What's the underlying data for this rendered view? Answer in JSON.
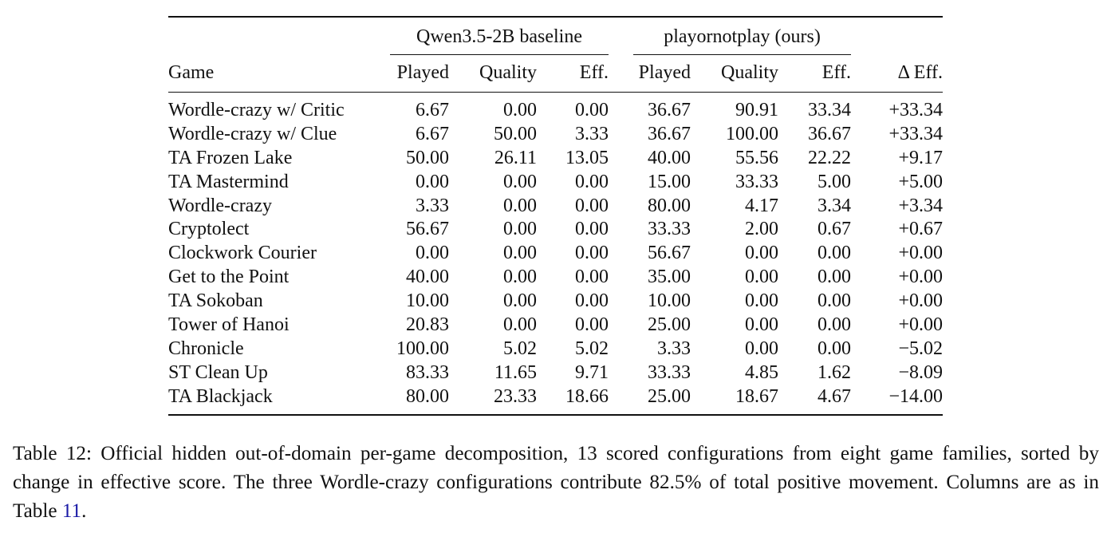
{
  "table": {
    "group_headers": {
      "baseline": "Qwen3.5-2B baseline",
      "ours": "playornotplay (ours)"
    },
    "columns": [
      "Game",
      "Played",
      "Quality",
      "Eff.",
      "Played",
      "Quality",
      "Eff.",
      "Δ Eff."
    ],
    "rows": [
      {
        "game": "Wordle-crazy w/ Critic",
        "b_played": "6.67",
        "b_quality": "0.00",
        "b_eff": "0.00",
        "o_played": "36.67",
        "o_quality": "90.91",
        "o_eff": "33.34",
        "delta": "+33.34"
      },
      {
        "game": "Wordle-crazy w/ Clue",
        "b_played": "6.67",
        "b_quality": "50.00",
        "b_eff": "3.33",
        "o_played": "36.67",
        "o_quality": "100.00",
        "o_eff": "36.67",
        "delta": "+33.34"
      },
      {
        "game": "TA Frozen Lake",
        "b_played": "50.00",
        "b_quality": "26.11",
        "b_eff": "13.05",
        "o_played": "40.00",
        "o_quality": "55.56",
        "o_eff": "22.22",
        "delta": "+9.17"
      },
      {
        "game": "TA Mastermind",
        "b_played": "0.00",
        "b_quality": "0.00",
        "b_eff": "0.00",
        "o_played": "15.00",
        "o_quality": "33.33",
        "o_eff": "5.00",
        "delta": "+5.00"
      },
      {
        "game": "Wordle-crazy",
        "b_played": "3.33",
        "b_quality": "0.00",
        "b_eff": "0.00",
        "o_played": "80.00",
        "o_quality": "4.17",
        "o_eff": "3.34",
        "delta": "+3.34"
      },
      {
        "game": "Cryptolect",
        "b_played": "56.67",
        "b_quality": "0.00",
        "b_eff": "0.00",
        "o_played": "33.33",
        "o_quality": "2.00",
        "o_eff": "0.67",
        "delta": "+0.67"
      },
      {
        "game": "Clockwork Courier",
        "b_played": "0.00",
        "b_quality": "0.00",
        "b_eff": "0.00",
        "o_played": "56.67",
        "o_quality": "0.00",
        "o_eff": "0.00",
        "delta": "+0.00"
      },
      {
        "game": "Get to the Point",
        "b_played": "40.00",
        "b_quality": "0.00",
        "b_eff": "0.00",
        "o_played": "35.00",
        "o_quality": "0.00",
        "o_eff": "0.00",
        "delta": "+0.00"
      },
      {
        "game": "TA Sokoban",
        "b_played": "10.00",
        "b_quality": "0.00",
        "b_eff": "0.00",
        "o_played": "10.00",
        "o_quality": "0.00",
        "o_eff": "0.00",
        "delta": "+0.00"
      },
      {
        "game": "Tower of Hanoi",
        "b_played": "20.83",
        "b_quality": "0.00",
        "b_eff": "0.00",
        "o_played": "25.00",
        "o_quality": "0.00",
        "o_eff": "0.00",
        "delta": "+0.00"
      },
      {
        "game": "Chronicle",
        "b_played": "100.00",
        "b_quality": "5.02",
        "b_eff": "5.02",
        "o_played": "3.33",
        "o_quality": "0.00",
        "o_eff": "0.00",
        "delta": "−5.02"
      },
      {
        "game": "ST Clean Up",
        "b_played": "83.33",
        "b_quality": "11.65",
        "b_eff": "9.71",
        "o_played": "33.33",
        "o_quality": "4.85",
        "o_eff": "1.62",
        "delta": "−8.09"
      },
      {
        "game": "TA Blackjack",
        "b_played": "80.00",
        "b_quality": "23.33",
        "b_eff": "18.66",
        "o_played": "25.00",
        "o_quality": "18.67",
        "o_eff": "4.67",
        "delta": "−14.00"
      }
    ]
  },
  "caption": {
    "main": "Table 12: Official hidden out-of-domain per-game decomposition, 13 scored configurations from eight game families, sorted by change in effective score. The three Wordle-crazy configurations contribute 82.5% of total positive movement. Columns are as in Table ",
    "ref": "11",
    "end": "."
  },
  "colors": {
    "text": "#111111",
    "link": "#1a1aa6"
  }
}
